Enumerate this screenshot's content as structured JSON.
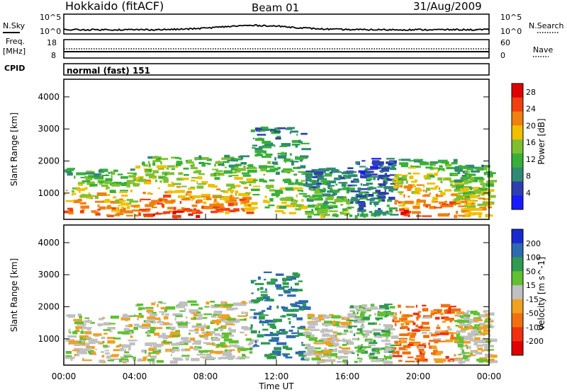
{
  "header": {
    "station": "Hokkaido (fitACF)",
    "beam": "Beam 01",
    "date": "31/Aug/2009"
  },
  "strip_labels": {
    "nsky": "N.Sky",
    "nsearch": "N.Search",
    "freq_line1": "Freq.",
    "freq_line2": "[MHz]",
    "nave": "Nave",
    "cpid": "CPID",
    "cpid_value": "normal (fast) 151"
  },
  "strip_ticks": {
    "noise_left": [
      "10^5",
      "10^0"
    ],
    "noise_right": [
      "10^5",
      "10^0"
    ],
    "freq_left": [
      "18",
      "8"
    ],
    "nave_right": [
      "60",
      "0"
    ]
  },
  "chart_data": [
    {
      "type": "heatmap",
      "panel": "power",
      "ylabel": "Slant Range [km]",
      "xlabel": "",
      "x_ticks": [
        "00:00",
        "04:00",
        "08:00",
        "12:00",
        "16:00",
        "20:00",
        "00:00"
      ],
      "xlim_hours": [
        0,
        24
      ],
      "y_ticks": [
        1000,
        2000,
        3000,
        4000
      ],
      "ylim": [
        180,
        4550
      ],
      "colorbar": {
        "label": "Power [dB]",
        "ticks": [
          4,
          8,
          12,
          16,
          20,
          24,
          28
        ],
        "range": [
          0,
          30
        ],
        "colors": [
          "#1a1aff",
          "#2e3fb0",
          "#2f8a73",
          "#38b038",
          "#80c030",
          "#f0c000",
          "#f08010",
          "#f04010",
          "#e00000"
        ]
      },
      "echo_regions": [
        {
          "t": [
            0.0,
            4.0
          ],
          "r": [
            300,
            1800
          ],
          "level": 20
        },
        {
          "t": [
            4.0,
            7.5
          ],
          "r": [
            300,
            2200
          ],
          "level": 22
        },
        {
          "t": [
            7.5,
            10.5
          ],
          "r": [
            400,
            2200
          ],
          "level": 20
        },
        {
          "t": [
            10.5,
            13.5
          ],
          "r": [
            400,
            3100
          ],
          "level": 14
        },
        {
          "t": [
            13.5,
            16.0
          ],
          "r": [
            300,
            1800
          ],
          "level": 12
        },
        {
          "t": [
            16.0,
            18.5
          ],
          "r": [
            300,
            2100
          ],
          "level": 8
        },
        {
          "t": [
            18.5,
            22.0
          ],
          "r": [
            300,
            2100
          ],
          "level": 22
        },
        {
          "t": [
            22.0,
            24.0
          ],
          "r": [
            300,
            1900
          ],
          "level": 18
        }
      ]
    },
    {
      "type": "heatmap",
      "panel": "velocity",
      "ylabel": "Slant Range [km]",
      "xlabel": "Time UT",
      "x_ticks": [
        "00:00",
        "04:00",
        "08:00",
        "12:00",
        "16:00",
        "20:00",
        "00:00"
      ],
      "xlim_hours": [
        0,
        24
      ],
      "y_ticks": [
        1000,
        2000,
        3000,
        4000
      ],
      "ylim": [
        180,
        4550
      ],
      "colorbar": {
        "label": "Velocity [m s^-1]",
        "ticks": [
          "200",
          "100",
          "50",
          "15",
          "-15",
          "-50",
          "-100",
          "-200"
        ],
        "colors": [
          "#1a2ad0",
          "#2e6ab0",
          "#2f9a50",
          "#60c030",
          "#c0c0c0",
          "#f0a020",
          "#f07010",
          "#f03010",
          "#e00000"
        ]
      },
      "echo_regions": [
        {
          "t": [
            0.0,
            4.0
          ],
          "r": [
            300,
            1800
          ],
          "velocity": 0
        },
        {
          "t": [
            4.0,
            7.5
          ],
          "r": [
            300,
            2200
          ],
          "velocity": 0
        },
        {
          "t": [
            7.5,
            10.5
          ],
          "r": [
            400,
            2200
          ],
          "velocity": 0
        },
        {
          "t": [
            10.5,
            13.5
          ],
          "r": [
            400,
            3100
          ],
          "velocity": 60
        },
        {
          "t": [
            13.5,
            16.0
          ],
          "r": [
            300,
            1800
          ],
          "velocity": 0
        },
        {
          "t": [
            16.0,
            18.5
          ],
          "r": [
            300,
            2100
          ],
          "velocity": 20
        },
        {
          "t": [
            18.5,
            22.0
          ],
          "r": [
            300,
            2100
          ],
          "velocity": -40
        },
        {
          "t": [
            22.0,
            24.0
          ],
          "r": [
            300,
            1900
          ],
          "velocity": 0
        }
      ]
    }
  ]
}
